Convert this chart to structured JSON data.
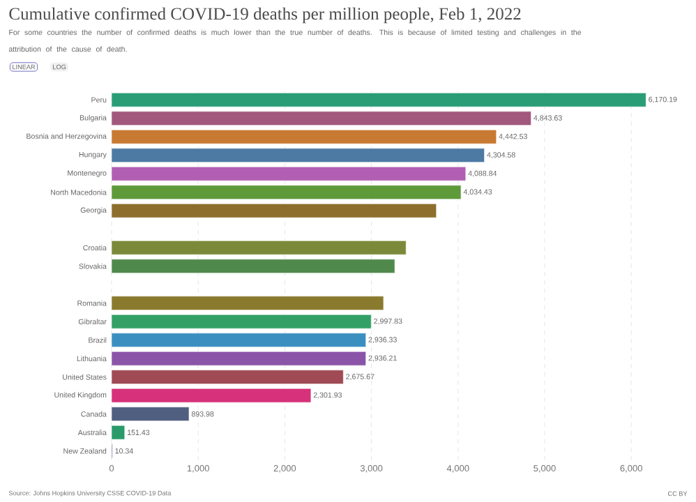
{
  "chart_data": {
    "type": "bar",
    "orientation": "horizontal",
    "title": "Cumulative confirmed COVID-19 deaths per million people, Feb 1, 2022",
    "subtitle": "For some countries the number of confirmed deaths is much lower than the true number of deaths. This is because of limited testing and challenges in the attribution of the cause of death.",
    "annotations": [
      "LINEAR",
      "LOG",
      "Source: Johns Hopkins University CSSE COVID-19 Data",
      "CC BY"
    ],
    "categories": [
      "Peru",
      "Bulgaria",
      "Bosnia and Herzegovina",
      "Hungary",
      "Montenegro",
      "North Macedonia",
      "Georgia",
      null,
      "Croatia",
      "Slovakia",
      null,
      "Romania",
      "Gibraltar",
      "Brazil",
      "Lithuania",
      "United States",
      "United Kingdom",
      "Canada",
      "Australia",
      "New Zealand"
    ],
    "values": [
      6170.19,
      4843.63,
      4442.53,
      4304.58,
      4088.84,
      4034.43,
      3750,
      null,
      3400,
      3270,
      null,
      3140,
      2997.83,
      2936.33,
      2936.21,
      2675.67,
      2301.93,
      893.98,
      151.43,
      10.34
    ],
    "value_labels": [
      "6,170.19",
      "4,843.63",
      "4,442.53",
      "4,304.58",
      "4,088.84",
      "4,034.43",
      null,
      null,
      null,
      null,
      null,
      null,
      "2,997.83",
      "2,936.33",
      "2,936.21",
      "2,675.67",
      "2,301.93",
      "893.98",
      "151.43",
      "10.34"
    ],
    "colors": [
      "#2a9d77",
      "#a2587c",
      "#c87a33",
      "#4d7aa3",
      "#b15fb3",
      "#5e9a3a",
      "#8d6e2c",
      null,
      "#7b8a3a",
      "#4f8a4c",
      null,
      "#8a7a2e",
      "#33a066",
      "#3b8fc0",
      "#8a55a8",
      "#a04a55",
      "#d6317a",
      "#505e80",
      "#2a9a6a",
      "#6a7fa0"
    ],
    "xlim": [
      0,
      6200
    ],
    "xticks": [
      0,
      {
        "value": 1000,
        "label": "1,000"
      },
      {
        "value": 2000,
        "label": "2,000"
      },
      {
        "value": 3000,
        "label": "3,000"
      },
      {
        "value": 4000,
        "label": "4,000"
      },
      {
        "value": 5000,
        "label": "5,000"
      },
      {
        "value": 6000,
        "label": "6,000"
      }
    ],
    "grid": "x"
  }
}
